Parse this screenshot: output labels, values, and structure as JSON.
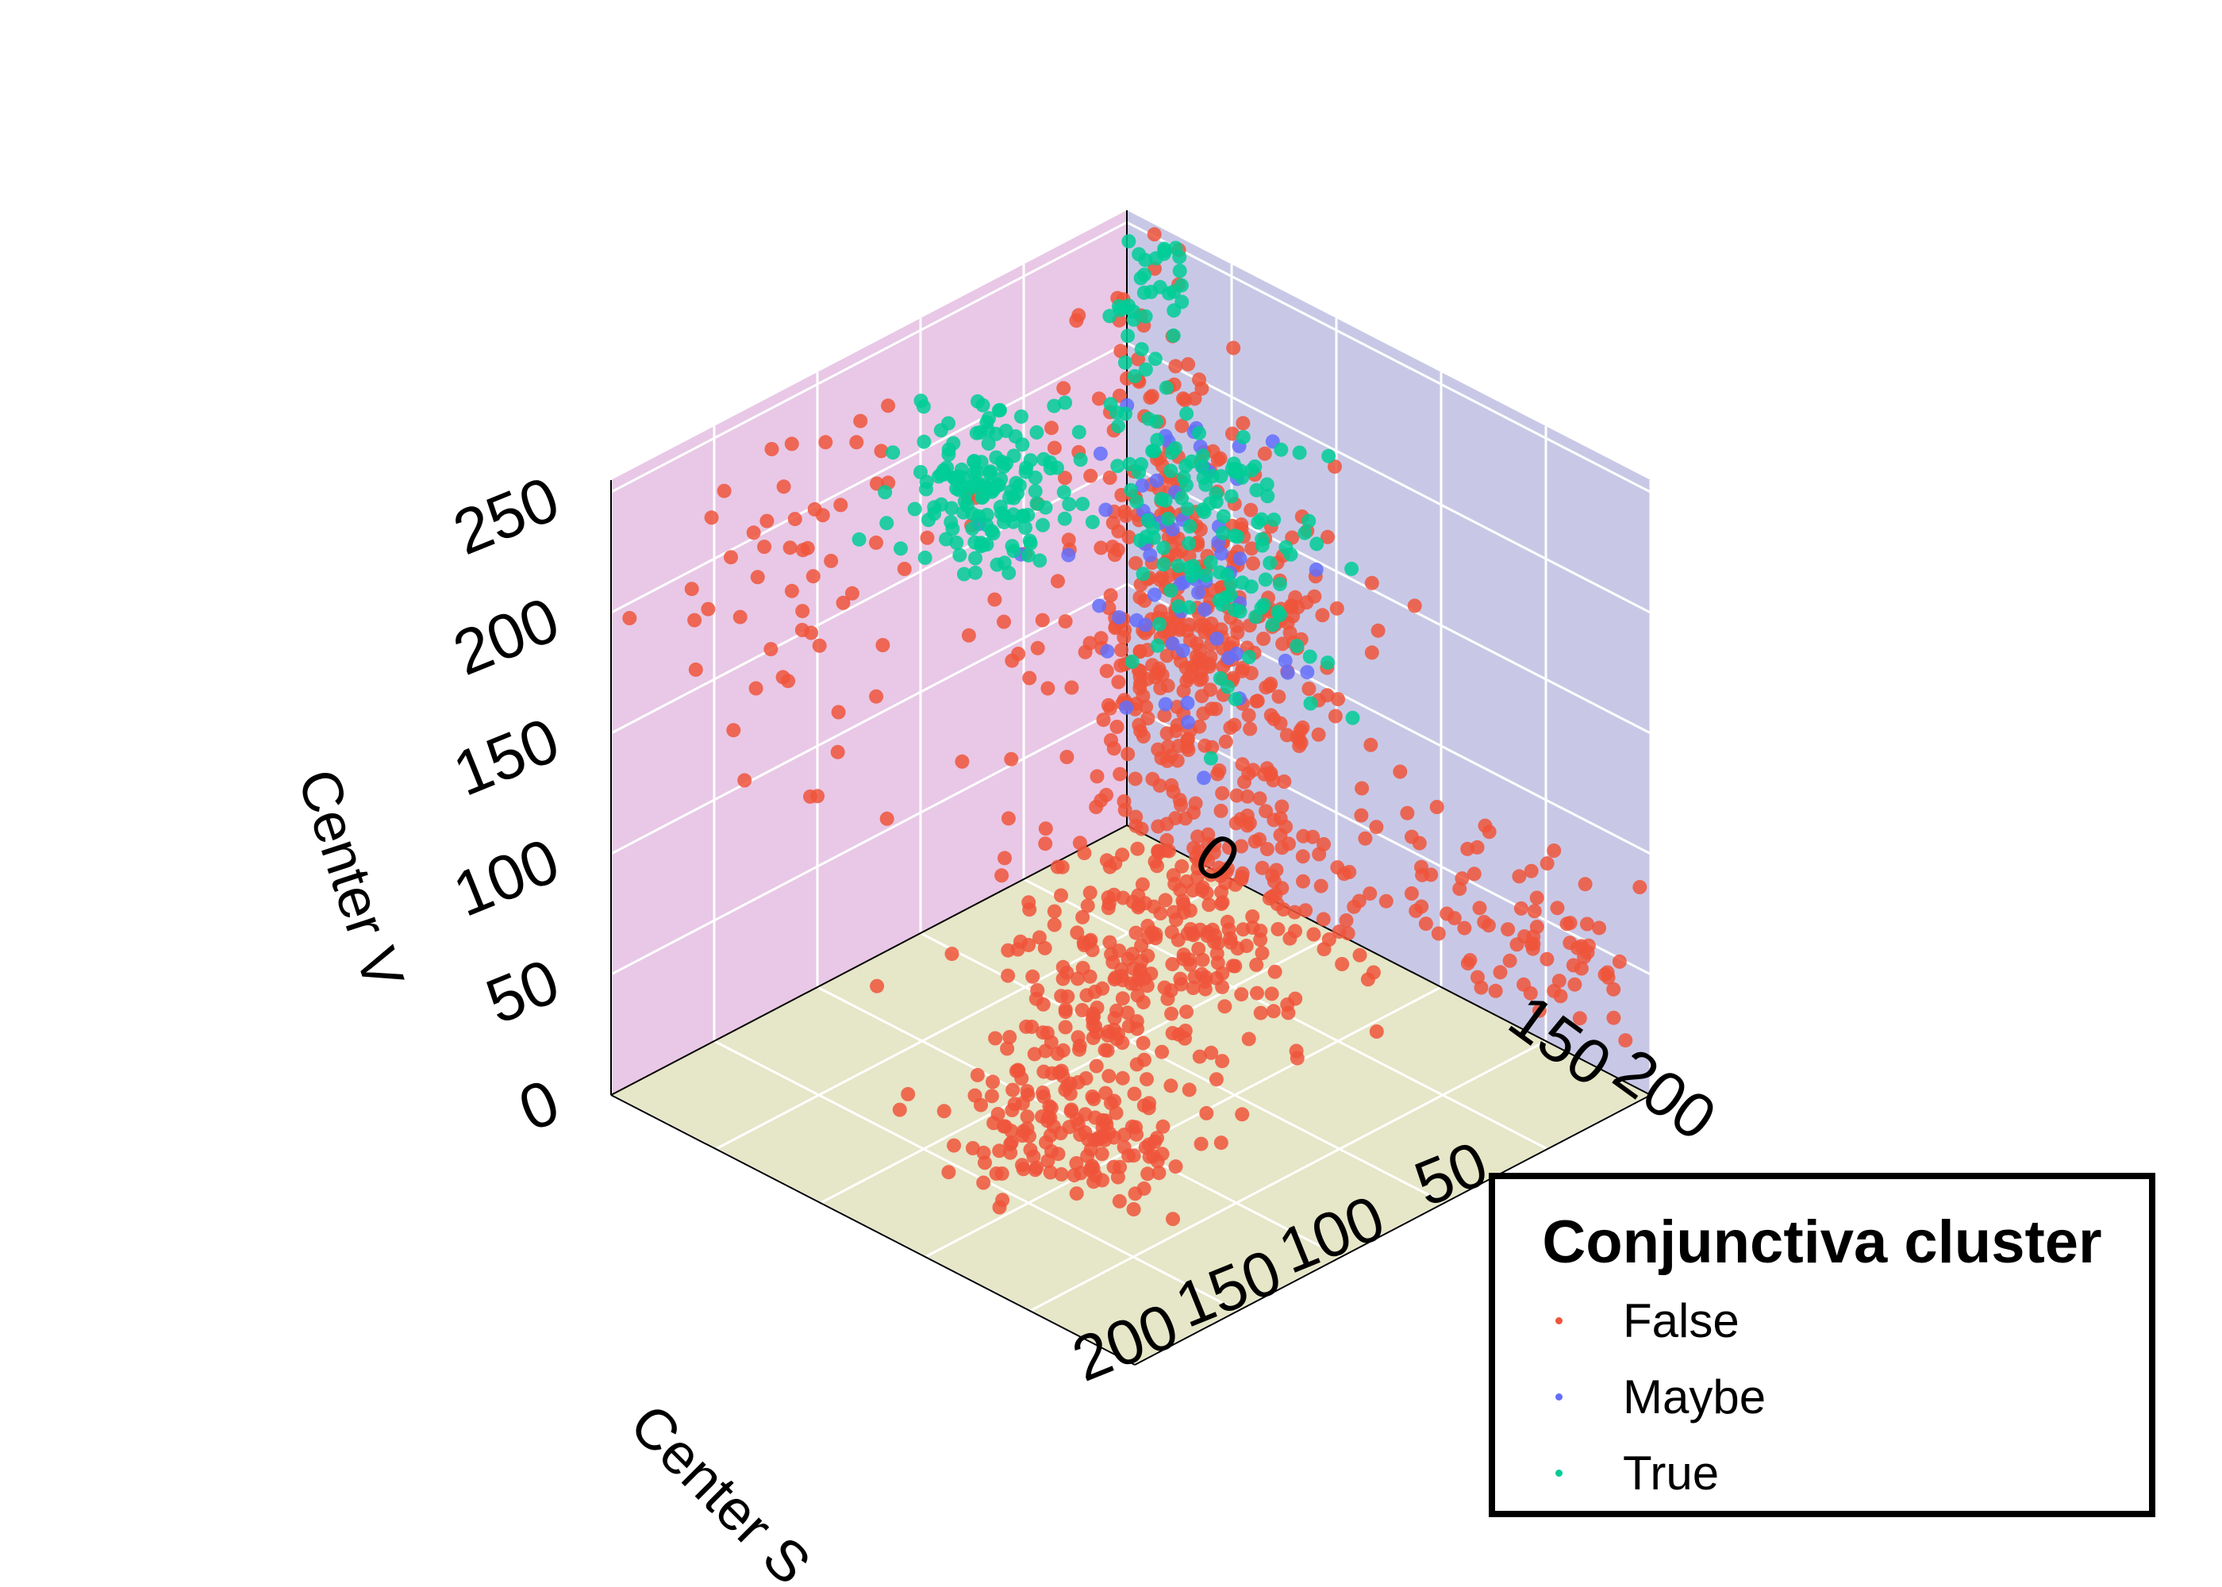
{
  "chart_data": {
    "type": "scatter3d",
    "title": "",
    "xlabel": "",
    "ylabel": "Center S",
    "zlabel": "Center V",
    "xticks": [
      "0",
      "150",
      "200"
    ],
    "yticks": [
      "50",
      "100",
      "150",
      "200"
    ],
    "zticks": [
      "0",
      "50",
      "100",
      "150",
      "200",
      "250"
    ],
    "xlim": [
      0,
      250
    ],
    "ylim": [
      0,
      250
    ],
    "zlim": [
      0,
      255
    ],
    "grid": true,
    "legend": {
      "title": "Conjunctiva cluster",
      "placement": "bottom-right",
      "entries": [
        "False",
        "Maybe",
        "True"
      ]
    },
    "panes": {
      "left_wall": "#e8c8e6",
      "right_wall": "#c8c8e6",
      "floor": "#e6e6c8"
    },
    "series": [
      {
        "name": "False",
        "color": "#ef553b",
        "clusters": [
          {
            "cx": 80,
            "cy": 45,
            "cz": 130,
            "sx": 28,
            "sy": 22,
            "sz": 40,
            "n": 380
          },
          {
            "cx": 110,
            "cy": 90,
            "cz": 40,
            "sx": 22,
            "sy": 40,
            "sz": 22,
            "n": 320
          },
          {
            "cx": 140,
            "cy": 170,
            "cz": 15,
            "sx": 20,
            "sy": 22,
            "sz": 10,
            "n": 160
          },
          {
            "cx": 200,
            "cy": 15,
            "cz": 55,
            "sx": 35,
            "sy": 8,
            "sz": 18,
            "n": 80
          },
          {
            "cx": 30,
            "cy": 10,
            "cz": 190,
            "sx": 15,
            "sy": 8,
            "sz": 40,
            "n": 70
          },
          {
            "cx": 20,
            "cy": 160,
            "cz": 180,
            "sx": 10,
            "sy": 35,
            "sz": 45,
            "n": 60
          }
        ]
      },
      {
        "name": "Maybe",
        "color": "#636efa",
        "clusters": [
          {
            "cx": 65,
            "cy": 40,
            "cz": 165,
            "sx": 25,
            "sy": 20,
            "sz": 35,
            "n": 60
          }
        ]
      },
      {
        "name": "True",
        "color": "#00cc96",
        "clusters": [
          {
            "cx": 40,
            "cy": 110,
            "cz": 205,
            "sx": 15,
            "sy": 20,
            "sz": 15,
            "n": 150
          },
          {
            "cx": 65,
            "cy": 25,
            "cz": 160,
            "sx": 20,
            "sy": 12,
            "sz": 30,
            "n": 120
          },
          {
            "cx": 20,
            "cy": 10,
            "cz": 225,
            "sx": 10,
            "sy": 6,
            "sz": 25,
            "n": 40
          }
        ]
      }
    ]
  }
}
